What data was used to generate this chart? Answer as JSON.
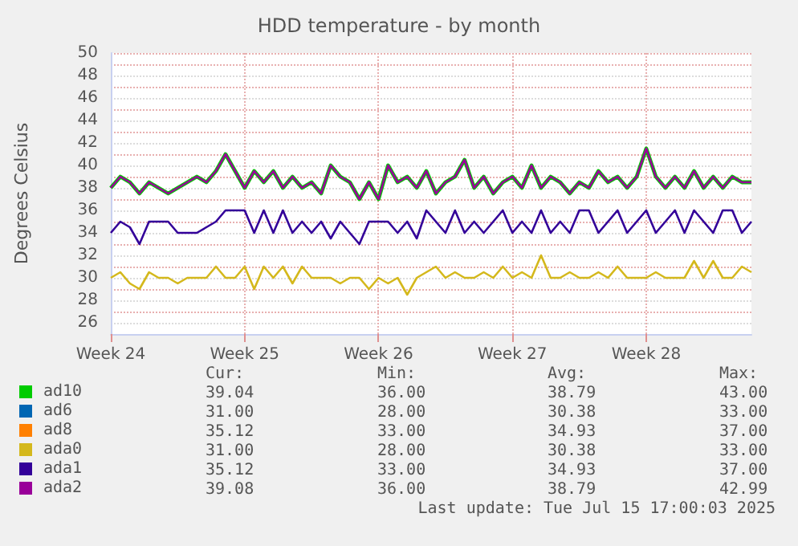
{
  "chart_data": {
    "type": "line",
    "title": "HDD temperature - by month",
    "ylabel": "Degrees Celsius",
    "x": [
      "2025-06-09T00:00",
      "2025-06-09T12:00",
      "2025-06-10T00:00",
      "2025-06-10T12:00",
      "2025-06-11T00:00",
      "2025-06-11T12:00",
      "2025-06-12T00:00",
      "2025-06-12T12:00",
      "2025-06-13T00:00",
      "2025-06-13T12:00",
      "2025-06-14T00:00",
      "2025-06-14T12:00",
      "2025-06-15T00:00",
      "2025-06-15T12:00",
      "2025-06-16T00:00",
      "2025-06-16T12:00",
      "2025-06-17T00:00",
      "2025-06-17T12:00",
      "2025-06-18T00:00",
      "2025-06-18T12:00",
      "2025-06-19T00:00",
      "2025-06-19T12:00",
      "2025-06-20T00:00",
      "2025-06-20T12:00",
      "2025-06-21T00:00",
      "2025-06-21T12:00",
      "2025-06-22T00:00",
      "2025-06-22T12:00",
      "2025-06-23T00:00",
      "2025-06-23T12:00",
      "2025-06-24T00:00",
      "2025-06-24T12:00",
      "2025-06-25T00:00",
      "2025-06-25T12:00",
      "2025-06-26T00:00",
      "2025-06-26T12:00",
      "2025-06-27T00:00",
      "2025-06-27T12:00",
      "2025-06-28T00:00",
      "2025-06-28T12:00",
      "2025-06-29T00:00",
      "2025-06-29T12:00",
      "2025-06-30T00:00",
      "2025-06-30T12:00",
      "2025-07-01T00:00",
      "2025-07-01T12:00",
      "2025-07-02T00:00",
      "2025-07-02T12:00",
      "2025-07-03T00:00",
      "2025-07-03T12:00",
      "2025-07-04T00:00",
      "2025-07-04T12:00",
      "2025-07-05T00:00",
      "2025-07-05T12:00",
      "2025-07-06T00:00",
      "2025-07-06T12:00",
      "2025-07-07T00:00",
      "2025-07-07T12:00",
      "2025-07-08T00:00",
      "2025-07-08T12:00",
      "2025-07-09T00:00",
      "2025-07-09T12:00",
      "2025-07-10T00:00",
      "2025-07-10T12:00",
      "2025-07-11T00:00",
      "2025-07-11T12:00",
      "2025-07-12T00:00",
      "2025-07-12T12:00"
    ],
    "xlim": [
      "2025-06-09T00:00",
      "2025-07-12T12:00"
    ],
    "xticks": [
      {
        "value": "2025-06-09",
        "label": "Week 24"
      },
      {
        "value": "2025-06-16",
        "label": "Week 25"
      },
      {
        "value": "2025-06-23",
        "label": "Week 26"
      },
      {
        "value": "2025-06-30",
        "label": "Week 27"
      },
      {
        "value": "2025-07-07",
        "label": "Week 28"
      }
    ],
    "ylim": [
      25,
      50
    ],
    "yticks": [
      26,
      28,
      30,
      32,
      34,
      36,
      38,
      40,
      42,
      44,
      46,
      48,
      50
    ],
    "grid": true,
    "legend": "bottom left",
    "series": [
      {
        "name": "ad10",
        "color": "#00cc00",
        "values": [
          38,
          39,
          38.5,
          37.5,
          38.5,
          38,
          37.5,
          38,
          38.5,
          39,
          38.5,
          39.5,
          41,
          39.5,
          38,
          39.5,
          38.5,
          39.5,
          38,
          39,
          38,
          38.5,
          37.5,
          40,
          39,
          38.5,
          37,
          38.5,
          37,
          40,
          38.5,
          39,
          38,
          39.5,
          37.5,
          38.5,
          39,
          40.5,
          38,
          39,
          37.5,
          38.5,
          39,
          38,
          40,
          38,
          39,
          38.5,
          37.5,
          38.5,
          38,
          39.5,
          38.5,
          39,
          38,
          39,
          41.5,
          39,
          38,
          39,
          38,
          39.5,
          38,
          39,
          38,
          39,
          38.5,
          38.5
        ]
      },
      {
        "name": "ad6",
        "color": "#0066b3",
        "values": [
          null,
          null,
          null,
          null,
          null,
          null,
          null,
          null,
          null,
          null,
          null,
          null,
          null,
          null,
          null,
          null,
          null,
          null,
          null,
          null,
          null,
          null,
          null,
          null,
          null,
          null,
          null,
          null,
          null,
          null,
          null,
          null,
          null,
          null,
          null,
          null,
          null,
          null,
          null,
          null,
          null,
          null,
          null,
          null,
          null,
          null,
          null,
          null,
          null,
          null,
          null,
          null,
          null,
          null,
          null,
          null,
          null,
          null,
          null,
          null,
          null,
          null,
          null,
          null,
          null,
          null,
          null,
          null
        ]
      },
      {
        "name": "ad8",
        "color": "#ff8000",
        "values": [
          null,
          null,
          null,
          null,
          null,
          null,
          null,
          null,
          null,
          null,
          null,
          null,
          null,
          null,
          null,
          null,
          null,
          null,
          null,
          null,
          null,
          null,
          null,
          null,
          null,
          null,
          null,
          null,
          null,
          null,
          null,
          null,
          null,
          null,
          null,
          null,
          null,
          null,
          null,
          null,
          null,
          null,
          null,
          null,
          null,
          null,
          null,
          null,
          null,
          null,
          null,
          null,
          null,
          null,
          null,
          null,
          null,
          null,
          null,
          null,
          null,
          null,
          null,
          null,
          null,
          null,
          null,
          null
        ]
      },
      {
        "name": "ada0",
        "color": "#d4b81c",
        "values": [
          30,
          30.5,
          29.5,
          29,
          30.5,
          30,
          30,
          29.5,
          30,
          30,
          30,
          31,
          30,
          30,
          31,
          29,
          31,
          30,
          31,
          29.5,
          31,
          30,
          30,
          30,
          29.5,
          30,
          30,
          29,
          30,
          29.5,
          30,
          28.5,
          30,
          30.5,
          31,
          30,
          30.5,
          30,
          30,
          30.5,
          30,
          31,
          30,
          30.5,
          30,
          32,
          30,
          30,
          30.5,
          30,
          30,
          30.5,
          30,
          31,
          30,
          30,
          30,
          30.5,
          30,
          30,
          30,
          31.5,
          30,
          31.5,
          30,
          30,
          31,
          30.5
        ]
      },
      {
        "name": "ada1",
        "color": "#330099",
        "values": [
          34,
          35,
          34.5,
          33,
          35,
          35,
          35,
          34,
          34,
          34,
          34.5,
          35,
          36,
          36,
          36,
          34,
          36,
          34,
          36,
          34,
          35,
          34,
          35,
          33.5,
          35,
          34,
          33,
          35,
          35,
          35,
          34,
          35,
          33.5,
          36,
          35,
          34,
          36,
          34,
          35,
          34,
          35,
          36,
          34,
          35,
          34,
          36,
          34,
          35,
          34,
          36,
          36,
          34,
          35,
          36,
          34,
          35,
          36,
          34,
          35,
          36,
          34,
          36,
          35,
          34,
          36,
          36,
          34,
          35
        ]
      },
      {
        "name": "ada2",
        "color": "#990099",
        "values": [
          38,
          39,
          38.5,
          37.5,
          38.5,
          38,
          37.5,
          38,
          38.5,
          39,
          38.5,
          39.5,
          41,
          39.5,
          38,
          39.5,
          38.5,
          39.5,
          38,
          39,
          38,
          38.5,
          37.5,
          40,
          39,
          38.5,
          37,
          38.5,
          37,
          40,
          38.5,
          39,
          38,
          39.5,
          37.5,
          38.5,
          39,
          40.5,
          38,
          39,
          37.5,
          38.5,
          39,
          38,
          40,
          38,
          39,
          38.5,
          37.5,
          38.5,
          38,
          39.5,
          38.5,
          39,
          38,
          39,
          41.5,
          39,
          38,
          39,
          38,
          39.5,
          38,
          39,
          38,
          39,
          38.5,
          38.5
        ]
      }
    ],
    "annotations": [
      "Cur:",
      "Min:",
      "Avg:",
      "Max:",
      "39.04",
      "36.00",
      "38.79",
      "43.00",
      "31.00",
      "28.00",
      "30.38",
      "33.00",
      "35.12",
      "33.00",
      "34.93",
      "37.00",
      "31.00",
      "28.00",
      "30.38",
      "33.00",
      "35.12",
      "33.00",
      "34.93",
      "37.00",
      "39.08",
      "36.00",
      "38.79",
      "42.99",
      "Last update: Tue Jul 15 17:00:03 2025"
    ]
  }
}
